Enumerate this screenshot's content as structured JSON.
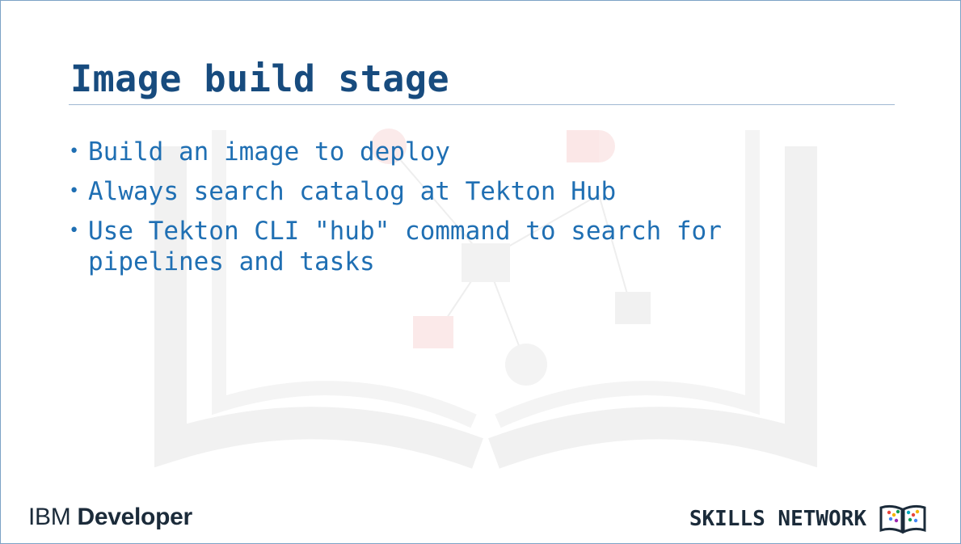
{
  "slide": {
    "title": "Image build stage",
    "bullets": [
      "Build an image to deploy",
      "Always search catalog at Tekton Hub",
      "Use Tekton CLI \"hub\" command to search for pipelines and tasks"
    ],
    "bullet_glyph": "•"
  },
  "footer": {
    "brand_prefix": "IBM",
    "brand_name": "Developer",
    "network_label": "SKILLS NETWORK",
    "network_logo_icon": "open-book-logo-icon"
  },
  "colors": {
    "title": "#174b7e",
    "bullet_text": "#1f6fb3",
    "border": "#7da3c6",
    "footer_text": "#1b2b3a"
  }
}
